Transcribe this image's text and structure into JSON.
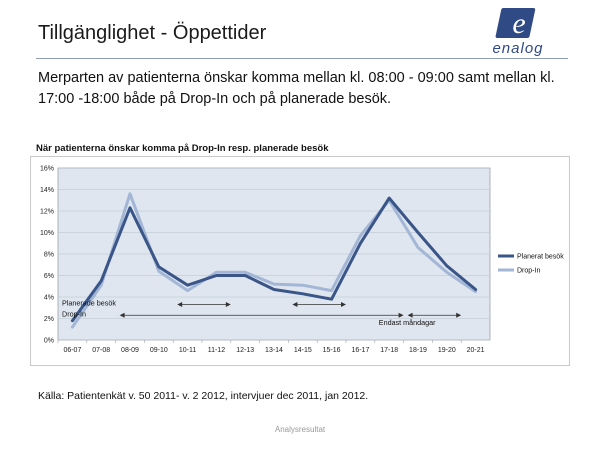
{
  "slide": {
    "title": "Tillgänglighet - Öppettider",
    "intro": "Merparten av patienterna önskar komma mellan kl. 08:00 - 09:00 samt mellan kl. 17:00 -18:00 både på Drop-In och på planerade besök.",
    "logo_letter": "e",
    "logo_text": "enalog",
    "source": "Källa: Patientenkät v. 50 2011- v. 2 2012, intervjuer dec 2011, jan 2012.",
    "footer": "Analysresultat"
  },
  "colors": {
    "accent": "#2f4a85",
    "planerat": "#3a5588",
    "dropin": "#a3b6d6",
    "plot_bg": "#dfe6ef"
  },
  "chart_data": {
    "type": "line",
    "title": "När patienterna önskar komma på Drop-In resp. planerade besök",
    "categories": [
      "06-07",
      "07-08",
      "08-09",
      "09-10",
      "10-11",
      "11-12",
      "12-13",
      "13-14",
      "14-15",
      "15-16",
      "16-17",
      "17-18",
      "18-19",
      "19-20",
      "20-21"
    ],
    "series": [
      {
        "name": "Planerat besök",
        "color": "#3a5588",
        "values": [
          1.8,
          5.5,
          12.3,
          6.8,
          5.1,
          6.0,
          6.0,
          4.7,
          4.3,
          3.8,
          9.0,
          13.2,
          10.0,
          6.9,
          4.7
        ]
      },
      {
        "name": "Drop-In",
        "color": "#a3b6d6",
        "values": [
          1.2,
          5.1,
          13.6,
          6.4,
          4.6,
          6.3,
          6.3,
          5.2,
          5.1,
          4.6,
          9.7,
          13.0,
          8.6,
          6.3,
          4.5
        ]
      }
    ],
    "ylim": [
      0,
      16
    ],
    "yticks": [
      0,
      2,
      4,
      6,
      8,
      10,
      12,
      14,
      16
    ],
    "ytick_labels": [
      "0%",
      "2%",
      "4%",
      "6%",
      "8%",
      "10%",
      "12%",
      "14%",
      "16%"
    ],
    "grid": "horizontal",
    "legend": "right",
    "annotations": [
      {
        "text": "Planerade besök",
        "at": "06-07",
        "y": 3.2
      },
      {
        "text": "Drop-In",
        "at": "06-07",
        "y": 2.2
      },
      {
        "text": "Endast måndagar",
        "at": "17-18",
        "y": 1.4
      }
    ],
    "arrows": [
      {
        "from": "10-11",
        "to": "12-13",
        "y": 3.3
      },
      {
        "from": "14-15",
        "to": "16-17",
        "y": 3.3
      },
      {
        "from": "08-09",
        "to": "18-19",
        "y": 2.3
      },
      {
        "from": "18-19",
        "to": "20-21",
        "y": 2.3
      }
    ]
  }
}
